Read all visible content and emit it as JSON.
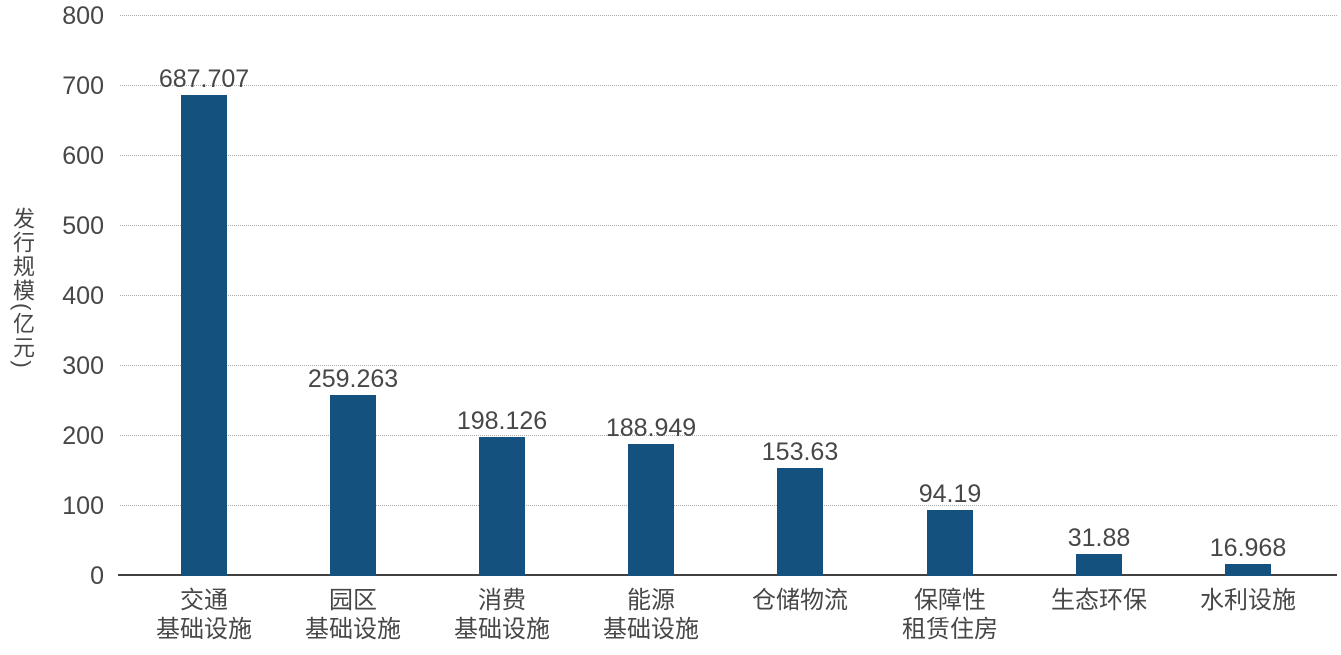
{
  "chart_data": {
    "type": "bar",
    "title": "",
    "xlabel": "",
    "ylabel": "发行规模(亿元)",
    "categories": [
      "交通\n基础设施",
      "园区\n基础设施",
      "消费\n基础设施",
      "能源\n基础设施",
      "仓储物流",
      "保障性\n租赁住房",
      "生态环保",
      "水利设施"
    ],
    "values": [
      687.707,
      259.263,
      198.126,
      188.949,
      153.63,
      94.19,
      31.88,
      16.968
    ],
    "value_labels": [
      "687.707",
      "259.263",
      "198.126",
      "188.949",
      "153.63",
      "94.19",
      "31.88",
      "16.968"
    ],
    "yticks": [
      0,
      100,
      200,
      300,
      400,
      500,
      600,
      700,
      800
    ],
    "ylim": [
      0,
      800
    ],
    "grid": "horizontal-dotted",
    "legend": "none",
    "colors": {
      "bar": "#15517E",
      "gridline": "#ABABAB",
      "axis_line": "#404040",
      "text": "#474747",
      "background": "#FFFFFF"
    }
  }
}
